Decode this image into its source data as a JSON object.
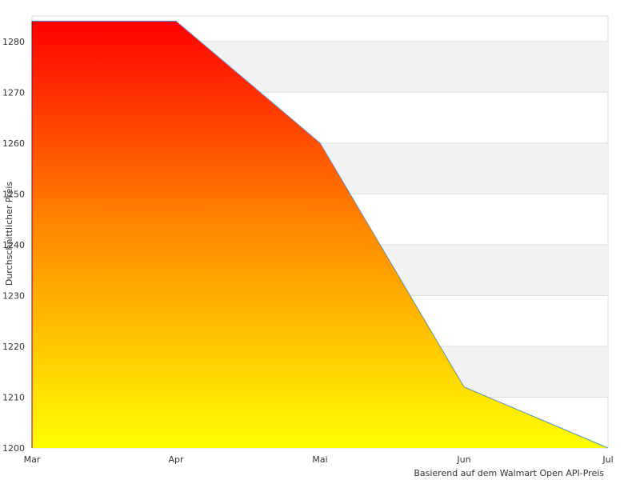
{
  "chart_data": {
    "type": "area",
    "x": [
      "Mar",
      "Apr",
      "Mai",
      "Jun",
      "Jul"
    ],
    "series": [
      {
        "values": [
          1284,
          1284,
          1260,
          1212,
          1200
        ]
      }
    ],
    "ylabel": "Durchschnittlicher Preis",
    "xlabel": "",
    "ylim": [
      1200,
      1284
    ],
    "yticks": [
      1200,
      1210,
      1220,
      1230,
      1240,
      1250,
      1260,
      1270,
      1280
    ],
    "grid": "alternating horizontal bands",
    "credit": "Basierend auf dem Walmart Open API-Preis",
    "colors": {
      "gradient_top": "#ff0000",
      "gradient_mid": "#ff8c00",
      "gradient_bottom": "#ffff00",
      "line": "#4a90d9",
      "band": "#f2f2f2",
      "grid": "#dddddd"
    }
  }
}
